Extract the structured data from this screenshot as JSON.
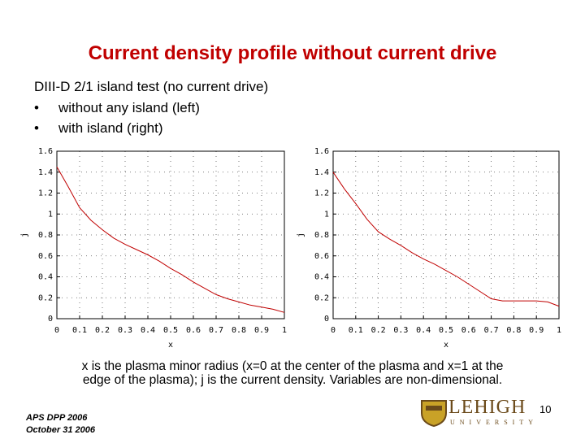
{
  "slide_title": "Current density profile without current drive",
  "intro": "DIII-D 2/1 island test (no current drive)",
  "bullets": [
    "without any island (left)",
    "with island (right)"
  ],
  "caption": [
    "x is the plasma minor radius (x=0 at the center of the plasma and x=1 at the",
    "edge of the plasma); j is the current density. Variables are non-dimensional."
  ],
  "footer": [
    "APS DPP 2006",
    "October 31 2006"
  ],
  "page_number": "10",
  "logo": {
    "name": "LEHIGH",
    "sub": "UNIVERSITY"
  },
  "chart_data": [
    {
      "type": "line",
      "xlabel": "x",
      "ylabel": "j",
      "x": [
        0,
        0.05,
        0.1,
        0.15,
        0.2,
        0.25,
        0.3,
        0.35,
        0.4,
        0.45,
        0.5,
        0.55,
        0.6,
        0.65,
        0.7,
        0.75,
        0.8,
        0.85,
        0.9,
        0.95,
        1
      ],
      "series": [
        {
          "color": "#c00000",
          "values": [
            1.45,
            1.26,
            1.06,
            0.94,
            0.85,
            0.77,
            0.71,
            0.66,
            0.61,
            0.55,
            0.48,
            0.42,
            0.35,
            0.29,
            0.23,
            0.19,
            0.16,
            0.13,
            0.11,
            0.09,
            0.06
          ]
        }
      ],
      "xlim": [
        0,
        1
      ],
      "ylim": [
        0,
        1.6
      ],
      "xticks": [
        0,
        0.1,
        0.2,
        0.3,
        0.4,
        0.5,
        0.6,
        0.7,
        0.8,
        0.9,
        1
      ],
      "yticks": [
        0,
        0.2,
        0.4,
        0.6,
        0.8,
        1,
        1.2,
        1.4,
        1.6
      ],
      "grid": true
    },
    {
      "type": "line",
      "xlabel": "x",
      "ylabel": "j",
      "x": [
        0,
        0.05,
        0.1,
        0.15,
        0.2,
        0.25,
        0.3,
        0.35,
        0.4,
        0.45,
        0.5,
        0.55,
        0.6,
        0.65,
        0.7,
        0.75,
        0.8,
        0.85,
        0.9,
        0.95,
        1
      ],
      "series": [
        {
          "color": "#c00000",
          "values": [
            1.4,
            1.24,
            1.1,
            0.95,
            0.83,
            0.76,
            0.7,
            0.63,
            0.57,
            0.52,
            0.46,
            0.4,
            0.33,
            0.26,
            0.19,
            0.17,
            0.17,
            0.17,
            0.17,
            0.16,
            0.12
          ]
        }
      ],
      "xlim": [
        0,
        1
      ],
      "ylim": [
        0,
        1.6
      ],
      "xticks": [
        0,
        0.1,
        0.2,
        0.3,
        0.4,
        0.5,
        0.6,
        0.7,
        0.8,
        0.9,
        1
      ],
      "yticks": [
        0,
        0.2,
        0.4,
        0.6,
        0.8,
        1,
        1.2,
        1.4,
        1.6
      ],
      "grid": true
    }
  ]
}
